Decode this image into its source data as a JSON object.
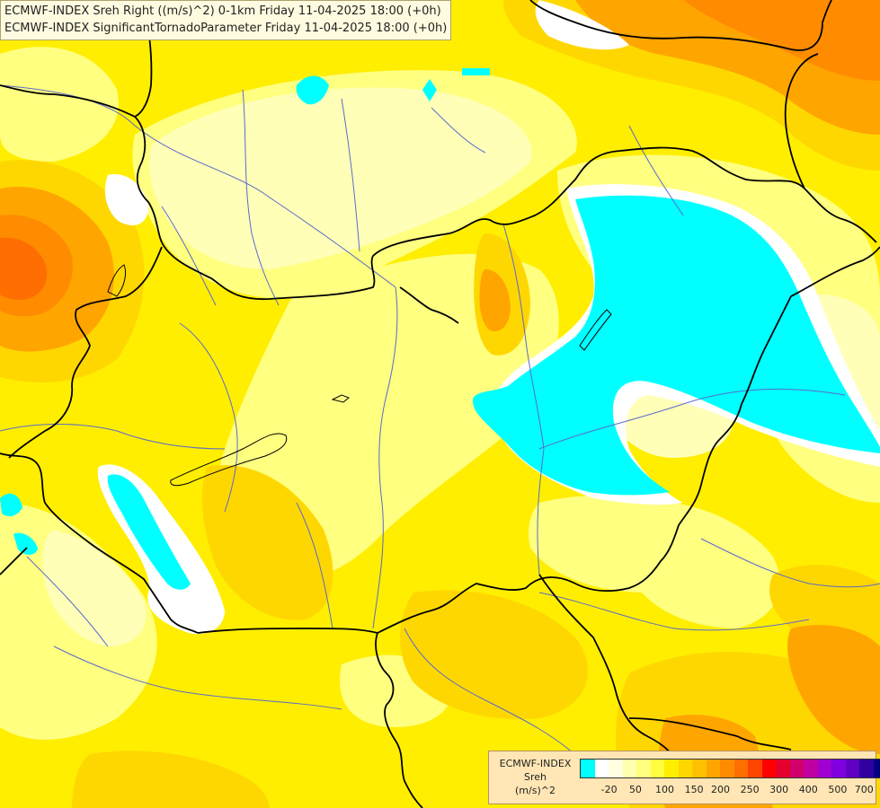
{
  "header": {
    "line1": "ECMWF-INDEX Sreh Right ((m/s)^2) 0-1km Friday 11-04-2025 18:00 (+0h)",
    "line2": "ECMWF-INDEX SignificantTornadoParameter Friday 11-04-2025 18:00 (+0h)"
  },
  "legend": {
    "title_line1": "ECMWF-INDEX",
    "title_line2": "Sreh",
    "title_line3": "(m/s)^2",
    "colors": [
      "#00ffff",
      "#ffffff",
      "#ffffe0",
      "#ffffb0",
      "#ffff80",
      "#ffff40",
      "#ffee00",
      "#ffd700",
      "#ffc000",
      "#ffa500",
      "#ff8c00",
      "#ff6e00",
      "#ff4500",
      "#ff0000",
      "#e6002e",
      "#d2006a",
      "#c000a0",
      "#a000d0",
      "#8000e0",
      "#6000c0",
      "#3000a0",
      "#000080"
    ],
    "ticks": [
      "-20",
      "50",
      "100",
      "150",
      "200",
      "250",
      "300",
      "400",
      "500",
      "700"
    ]
  },
  "map": {
    "colors": {
      "cyan": "#00ffff",
      "white": "#ffffff",
      "pale": "#ffffb8",
      "light_yellow": "#ffff80",
      "yellow": "#ffee00",
      "gold": "#ffd700",
      "orange": "#ffa500",
      "dark_orange": "#ff8c00",
      "red_orange": "#ff6e00",
      "border": "#000000",
      "river": "#5a6acc"
    }
  }
}
